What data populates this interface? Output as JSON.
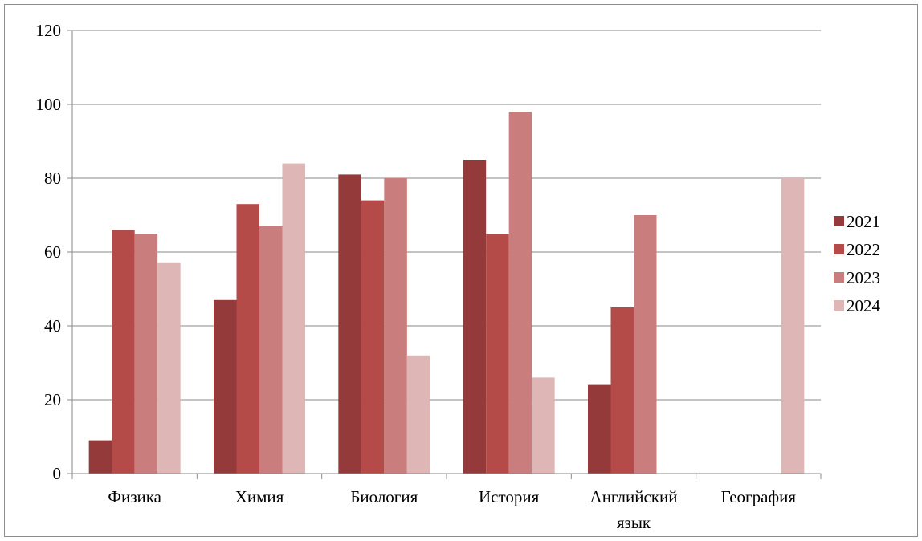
{
  "chart_data": {
    "type": "bar",
    "categories": [
      [
        "Физика"
      ],
      [
        "Химия"
      ],
      [
        "Биология"
      ],
      [
        "История"
      ],
      [
        "Английский",
        "язык"
      ],
      [
        "География"
      ]
    ],
    "series": [
      {
        "name": "2021",
        "color": "#943a3a",
        "values": [
          9,
          47,
          81,
          85,
          24,
          null
        ]
      },
      {
        "name": "2022",
        "color": "#b54b49",
        "values": [
          66,
          73,
          74,
          65,
          45,
          null
        ]
      },
      {
        "name": "2023",
        "color": "#c97d7c",
        "values": [
          65,
          67,
          80,
          98,
          70,
          null
        ]
      },
      {
        "name": "2024",
        "color": "#deb6b5",
        "values": [
          57,
          84,
          32,
          26,
          null,
          80
        ]
      }
    ],
    "ylim": [
      0,
      120
    ],
    "yticks": [
      "0",
      "20",
      "40",
      "60",
      "80",
      "100",
      "120"
    ],
    "grid": true,
    "legend_position": "right"
  }
}
